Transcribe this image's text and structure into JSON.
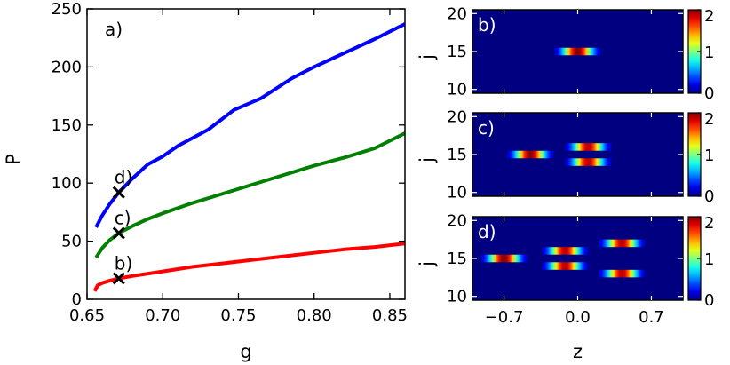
{
  "chart_data": [
    {
      "type": "line",
      "panel_label": "a)",
      "xlabel": "g",
      "ylabel": "P",
      "xlim": [
        0.65,
        0.86
      ],
      "ylim": [
        0,
        250
      ],
      "xticks": [
        "0.65",
        "0.70",
        "0.75",
        "0.80",
        "0.85"
      ],
      "xtick_values": [
        0.65,
        0.7,
        0.75,
        0.8,
        0.85
      ],
      "yticks": [
        "0",
        "50",
        "100",
        "150",
        "200",
        "250"
      ],
      "ytick_values": [
        0,
        50,
        100,
        150,
        200,
        250
      ],
      "series": [
        {
          "color": "#0000ff",
          "points": [
            [
              0.656,
              62
            ],
            [
              0.66,
              72
            ],
            [
              0.665,
              82
            ],
            [
              0.671,
              92
            ],
            [
              0.68,
              104
            ],
            [
              0.69,
              116
            ],
            [
              0.7,
              123
            ],
            [
              0.71,
              132
            ],
            [
              0.73,
              146
            ],
            [
              0.747,
              163
            ],
            [
              0.765,
              173
            ],
            [
              0.785,
              190
            ],
            [
              0.8,
              200
            ],
            [
              0.82,
              212
            ],
            [
              0.84,
              224
            ],
            [
              0.86,
              237
            ]
          ]
        },
        {
          "color": "#008000",
          "points": [
            [
              0.656,
              36
            ],
            [
              0.66,
              44
            ],
            [
              0.665,
              51
            ],
            [
              0.671,
              57
            ],
            [
              0.68,
              63
            ],
            [
              0.69,
              69
            ],
            [
              0.7,
              74
            ],
            [
              0.72,
              83
            ],
            [
              0.74,
              91
            ],
            [
              0.76,
              99
            ],
            [
              0.78,
              107
            ],
            [
              0.8,
              115
            ],
            [
              0.82,
              122
            ],
            [
              0.84,
              130
            ],
            [
              0.86,
              143
            ]
          ]
        },
        {
          "color": "#ff0000",
          "points": [
            [
              0.655,
              7
            ],
            [
              0.657,
              12
            ],
            [
              0.66,
              14
            ],
            [
              0.665,
              16
            ],
            [
              0.671,
              18
            ],
            [
              0.68,
              20
            ],
            [
              0.7,
              24
            ],
            [
              0.72,
              28
            ],
            [
              0.74,
              31
            ],
            [
              0.76,
              34
            ],
            [
              0.78,
              37
            ],
            [
              0.8,
              40
            ],
            [
              0.82,
              43
            ],
            [
              0.84,
              45
            ],
            [
              0.86,
              48
            ]
          ]
        }
      ],
      "markers": [
        {
          "label": "d)",
          "x": 0.671,
          "y": 92
        },
        {
          "label": "c)",
          "x": 0.671,
          "y": 57
        },
        {
          "label": "b)",
          "x": 0.671,
          "y": 18
        }
      ]
    },
    {
      "type": "heatmap",
      "panel_label": "b)",
      "ylabel": "j",
      "xlabel": "",
      "xlim": [
        -1.0,
        1.0
      ],
      "ylim": [
        9.5,
        20.5
      ],
      "yticks": [
        "10",
        "15",
        "20"
      ],
      "ytick_values": [
        10,
        15,
        20
      ],
      "colorbar_ticks": [
        "0",
        "1",
        "2"
      ],
      "colorbar_range": [
        0,
        2
      ],
      "blobs": [
        {
          "j": 15,
          "z": 0.0,
          "amp": 2.0
        }
      ]
    },
    {
      "type": "heatmap",
      "panel_label": "c)",
      "ylabel": "j",
      "xlabel": "",
      "xlim": [
        -1.0,
        1.0
      ],
      "ylim": [
        9.5,
        20.5
      ],
      "yticks": [
        "10",
        "15",
        "20"
      ],
      "ytick_values": [
        10,
        15,
        20
      ],
      "colorbar_ticks": [
        "0",
        "1",
        "2"
      ],
      "colorbar_range": [
        0,
        2
      ],
      "blobs": [
        {
          "j": 15,
          "z": -0.45,
          "amp": 2.0
        },
        {
          "j": 16,
          "z": 0.1,
          "amp": 1.9
        },
        {
          "j": 14,
          "z": 0.1,
          "amp": 1.9
        }
      ]
    },
    {
      "type": "heatmap",
      "panel_label": "d)",
      "ylabel": "j",
      "xlabel": "z",
      "xlim": [
        -1.0,
        1.0
      ],
      "ylim": [
        9.5,
        20.5
      ],
      "xticks": [
        "−0.7",
        "0.0",
        "0.7"
      ],
      "xtick_values": [
        -0.7,
        0.0,
        0.7
      ],
      "yticks": [
        "10",
        "15",
        "20"
      ],
      "ytick_values": [
        10,
        15,
        20
      ],
      "colorbar_ticks": [
        "0",
        "1",
        "2"
      ],
      "colorbar_range": [
        0,
        2
      ],
      "blobs": [
        {
          "j": 15,
          "z": -0.7,
          "amp": 2.0
        },
        {
          "j": 16,
          "z": -0.12,
          "amp": 1.9
        },
        {
          "j": 14,
          "z": -0.12,
          "amp": 1.9
        },
        {
          "j": 17,
          "z": 0.42,
          "amp": 1.9
        },
        {
          "j": 13,
          "z": 0.42,
          "amp": 1.9
        }
      ]
    }
  ]
}
